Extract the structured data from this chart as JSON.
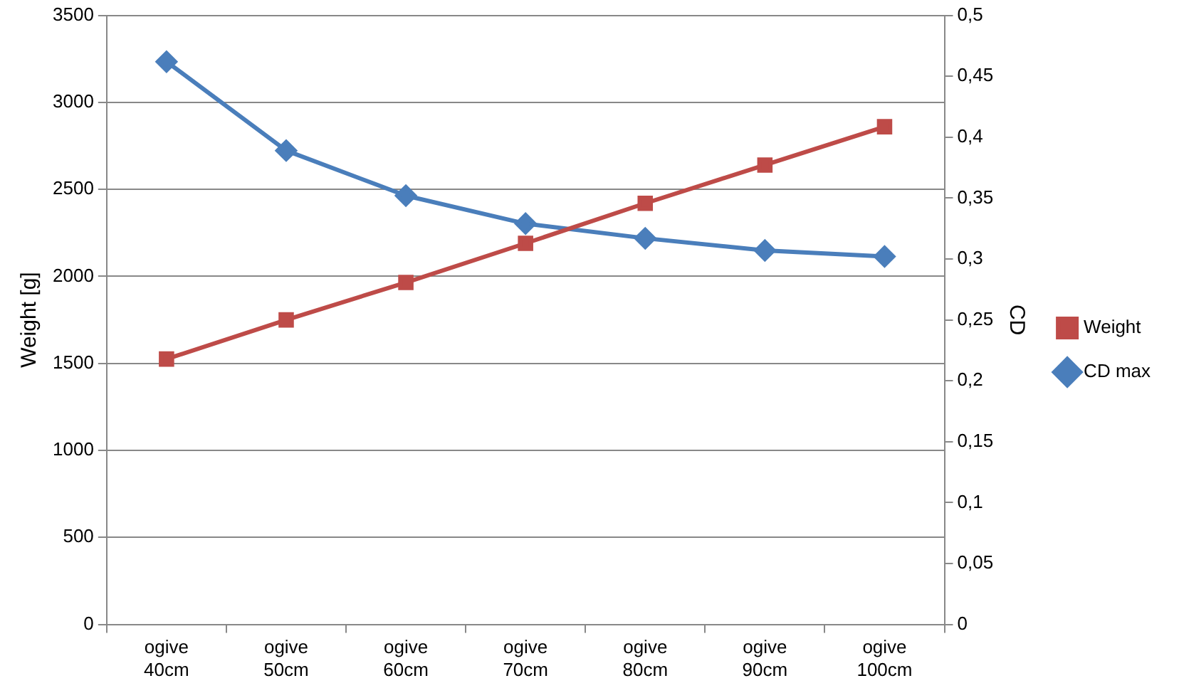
{
  "chart_data": {
    "type": "line",
    "ylabel": "Weight [g]",
    "y2label": "CD",
    "categories": [
      "ogive 40cm",
      "ogive 50cm",
      "ogive 60cm",
      "ogive 70cm",
      "ogive 80cm",
      "ogive 90cm",
      "ogive 100cm"
    ],
    "series": [
      {
        "name": "Weight",
        "color": "#be4b48",
        "marker": "square",
        "values": [
          1525,
          1750,
          1965,
          2190,
          2420,
          2640,
          2860
        ]
      },
      {
        "name": "CD max",
        "color": "#4a7ebb",
        "marker": "diamond",
        "axis": "y2",
        "values": [
          0.462,
          0.389,
          0.352,
          0.329,
          0.317,
          0.307,
          0.302
        ]
      }
    ],
    "ylim": [
      0,
      3500
    ],
    "yticks": [
      0,
      500,
      1000,
      1500,
      2000,
      2500,
      3000,
      3500
    ],
    "y2lim": [
      0,
      0.5
    ],
    "y2ticks": [
      0,
      {
        "value": 0.05,
        "label": "0,05"
      },
      {
        "value": 0.1,
        "label": "0,1"
      },
      {
        "value": 0.15,
        "label": "0,15"
      },
      {
        "value": 0.2,
        "label": "0,2"
      },
      {
        "value": 0.25,
        "label": "0,25"
      },
      {
        "value": 0.3,
        "label": "0,3"
      },
      {
        "value": 0.35,
        "label": "0,35"
      },
      {
        "value": 0.4,
        "label": "0,4"
      },
      {
        "value": 0.45,
        "label": "0,45"
      },
      {
        "value": 0.5,
        "label": "0,5"
      }
    ],
    "grid": "y",
    "legend": "right",
    "line_style": "solid"
  }
}
